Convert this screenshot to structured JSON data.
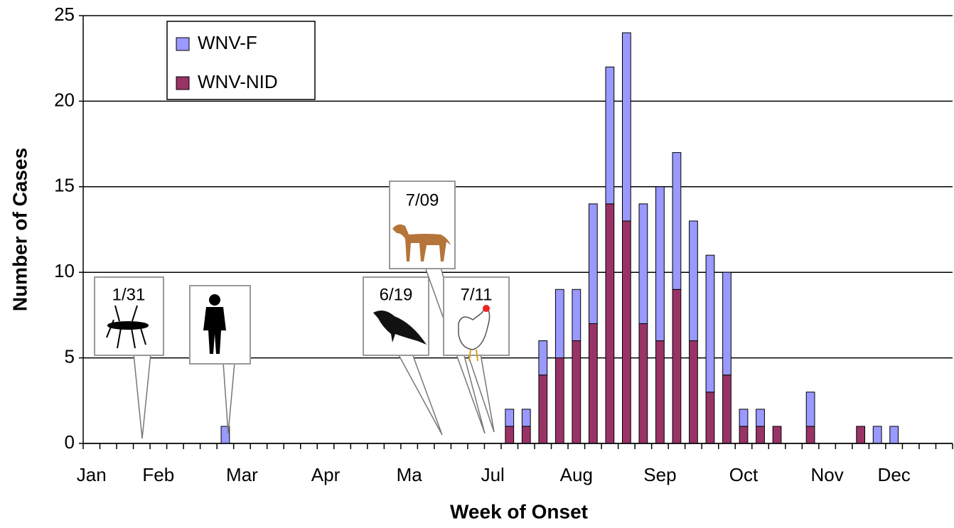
{
  "chart_data": {
    "type": "stacked-bar",
    "x_label": "Week of Onset",
    "y_label": "Number of Cases",
    "categories": [
      "Jan",
      null,
      null,
      null,
      "Feb",
      null,
      null,
      null,
      null,
      "Mar",
      null,
      null,
      null,
      null,
      "Apr",
      null,
      null,
      null,
      null,
      "Ma",
      null,
      null,
      null,
      null,
      "Jul",
      null,
      null,
      null,
      null,
      "Aug",
      null,
      null,
      null,
      null,
      "Sep",
      null,
      null,
      null,
      null,
      "Oct",
      null,
      null,
      null,
      null,
      "Nov",
      null,
      null,
      null,
      "Dec",
      null,
      null,
      null
    ],
    "series": [
      {
        "name": "WNV-NID",
        "color": "#993366",
        "values": [
          0,
          0,
          0,
          0,
          0,
          0,
          0,
          0,
          0,
          0,
          0,
          0,
          0,
          0,
          0,
          0,
          0,
          0,
          0,
          0,
          0,
          0,
          0,
          0,
          0,
          1,
          1,
          4,
          5,
          6,
          7,
          14,
          13,
          7,
          6,
          9,
          6,
          3,
          4,
          1,
          1,
          1,
          0,
          1,
          0,
          0,
          1,
          0,
          0,
          0,
          0,
          0
        ]
      },
      {
        "name": "WNV-F",
        "color": "#9999ff",
        "values": [
          0,
          0,
          0,
          0,
          0,
          0,
          0,
          0,
          1,
          0,
          0,
          0,
          0,
          0,
          0,
          0,
          0,
          0,
          0,
          0,
          0,
          0,
          0,
          0,
          0,
          1,
          1,
          2,
          4,
          3,
          7,
          8,
          11,
          7,
          9,
          8,
          7,
          8,
          6,
          1,
          1,
          0,
          0,
          2,
          0,
          0,
          0,
          1,
          1,
          0,
          0,
          0
        ]
      }
    ],
    "ylim": [
      0,
      25
    ],
    "yticks": [
      0,
      5,
      10,
      15,
      20,
      25
    ],
    "grid": true,
    "legend": "top-left",
    "annotations": [
      "1/31",
      "6/19",
      "7/09",
      "7/11"
    ]
  }
}
